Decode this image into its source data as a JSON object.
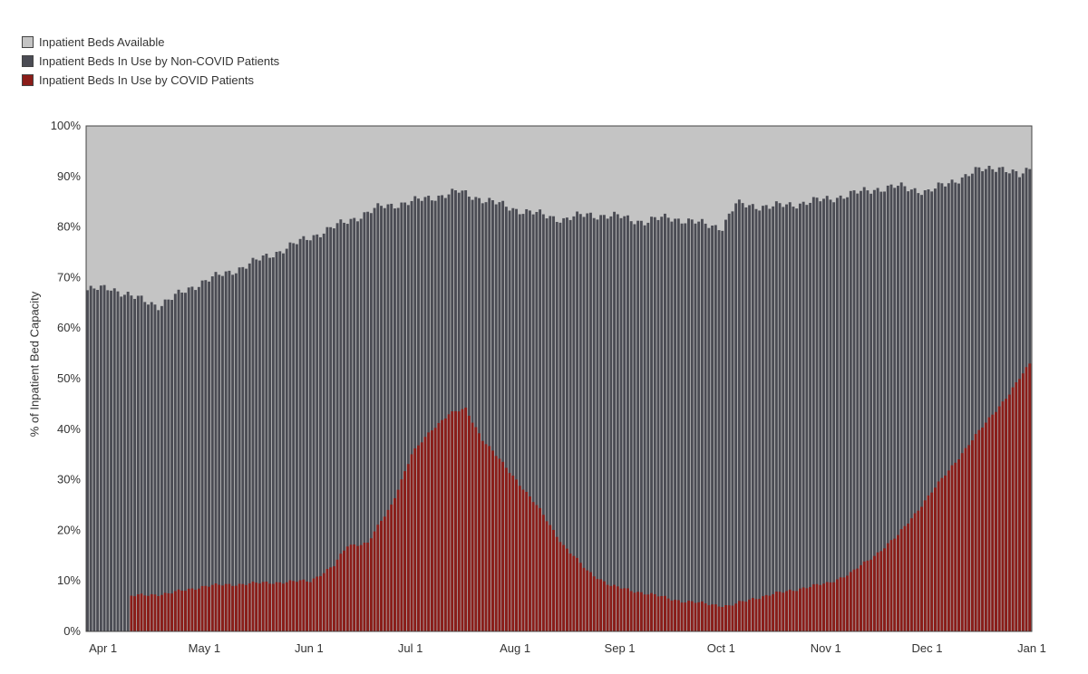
{
  "legend": [
    {
      "label": "Inpatient Beds Available",
      "color": "#c4c4c4"
    },
    {
      "label": "Inpatient Beds In Use by Non-COVID Patients",
      "color": "#4b4c54"
    },
    {
      "label": "Inpatient Beds In Use by COVID Patients",
      "color": "#8b1d19"
    }
  ],
  "chart_data": {
    "type": "bar",
    "stacked": true,
    "ylabel": "% of Inpatient Bed Capacity",
    "ylim": [
      0,
      100
    ],
    "yticks": [
      "0%",
      "10%",
      "20%",
      "30%",
      "40%",
      "50%",
      "60%",
      "70%",
      "80%",
      "90%",
      "100%"
    ],
    "x_start": "2020-03-27",
    "x_end": "2020-12-31",
    "xticks": [
      {
        "label": "Apr 1",
        "date": "2020-04-01"
      },
      {
        "label": "May 1",
        "date": "2020-05-01"
      },
      {
        "label": "Jun 1",
        "date": "2020-06-01"
      },
      {
        "label": "Jul 1",
        "date": "2020-07-01"
      },
      {
        "label": "Aug 1",
        "date": "2020-08-01"
      },
      {
        "label": "Sep 1",
        "date": "2020-09-01"
      },
      {
        "label": "Oct 1",
        "date": "2020-10-01"
      },
      {
        "label": "Nov 1",
        "date": "2020-11-01"
      },
      {
        "label": "Dec 1",
        "date": "2020-12-01"
      },
      {
        "label": "Jan 1",
        "date": "2021-01-01"
      }
    ],
    "series": [
      {
        "name": "Inpatient Beds In Use by COVID Patients",
        "color": "#8b1d19",
        "points": [
          [
            "2020-03-27",
            0
          ],
          [
            "2020-04-08",
            0
          ],
          [
            "2020-04-09",
            7
          ],
          [
            "2020-04-20",
            7.5
          ],
          [
            "2020-05-01",
            9
          ],
          [
            "2020-05-15",
            9.5
          ],
          [
            "2020-06-01",
            10
          ],
          [
            "2020-06-08",
            13
          ],
          [
            "2020-06-12",
            17
          ],
          [
            "2020-06-18",
            17.5
          ],
          [
            "2020-06-25",
            25
          ],
          [
            "2020-07-01",
            35
          ],
          [
            "2020-07-07",
            40
          ],
          [
            "2020-07-12",
            43
          ],
          [
            "2020-07-17",
            44
          ],
          [
            "2020-07-22",
            38
          ],
          [
            "2020-07-27",
            34
          ],
          [
            "2020-08-01",
            30
          ],
          [
            "2020-08-08",
            24
          ],
          [
            "2020-08-15",
            17
          ],
          [
            "2020-08-22",
            12
          ],
          [
            "2020-08-29",
            9
          ],
          [
            "2020-09-05",
            8
          ],
          [
            "2020-09-12",
            7
          ],
          [
            "2020-09-19",
            6
          ],
          [
            "2020-09-26",
            5.5
          ],
          [
            "2020-10-03",
            5
          ],
          [
            "2020-10-10",
            6.5
          ],
          [
            "2020-10-17",
            7.5
          ],
          [
            "2020-10-24",
            8.5
          ],
          [
            "2020-11-01",
            9.5
          ],
          [
            "2020-11-08",
            11.5
          ],
          [
            "2020-11-15",
            15
          ],
          [
            "2020-11-22",
            19
          ],
          [
            "2020-11-29",
            25
          ],
          [
            "2020-12-06",
            31
          ],
          [
            "2020-12-13",
            37
          ],
          [
            "2020-12-20",
            43
          ],
          [
            "2020-12-25",
            47
          ],
          [
            "2020-12-31",
            53
          ]
        ]
      },
      {
        "name": "Inpatient Beds In Use by Non-COVID Patients",
        "color": "#4b4c54",
        "points": [
          [
            "2020-03-27",
            67.5
          ],
          [
            "2020-04-03",
            68
          ],
          [
            "2020-04-10",
            66
          ],
          [
            "2020-04-17",
            64.5
          ],
          [
            "2020-04-24",
            67
          ],
          [
            "2020-05-01",
            69.5
          ],
          [
            "2020-05-08",
            71
          ],
          [
            "2020-05-15",
            73
          ],
          [
            "2020-05-22",
            75
          ],
          [
            "2020-06-01",
            78
          ],
          [
            "2020-06-08",
            80
          ],
          [
            "2020-06-15",
            82
          ],
          [
            "2020-06-22",
            84
          ],
          [
            "2020-07-01",
            85
          ],
          [
            "2020-07-08",
            86
          ],
          [
            "2020-07-15",
            87
          ],
          [
            "2020-07-22",
            85.5
          ],
          [
            "2020-08-01",
            83.5
          ],
          [
            "2020-08-08",
            82.5
          ],
          [
            "2020-08-15",
            81.5
          ],
          [
            "2020-08-22",
            82.5
          ],
          [
            "2020-09-01",
            82
          ],
          [
            "2020-09-08",
            81
          ],
          [
            "2020-09-15",
            82
          ],
          [
            "2020-09-22",
            81
          ],
          [
            "2020-10-01",
            80
          ],
          [
            "2020-10-05",
            84.5
          ],
          [
            "2020-10-15",
            84
          ],
          [
            "2020-10-22",
            84.5
          ],
          [
            "2020-11-01",
            85.5
          ],
          [
            "2020-11-08",
            86.5
          ],
          [
            "2020-11-15",
            87.5
          ],
          [
            "2020-11-22",
            88
          ],
          [
            "2020-12-01",
            87
          ],
          [
            "2020-12-08",
            89
          ],
          [
            "2020-12-15",
            91
          ],
          [
            "2020-12-22",
            92
          ],
          [
            "2020-12-28",
            90
          ],
          [
            "2020-12-31",
            91.5
          ]
        ]
      },
      {
        "name": "Inpatient Beds Available",
        "color": "#c4c4c4",
        "fill_to": 100
      }
    ]
  }
}
